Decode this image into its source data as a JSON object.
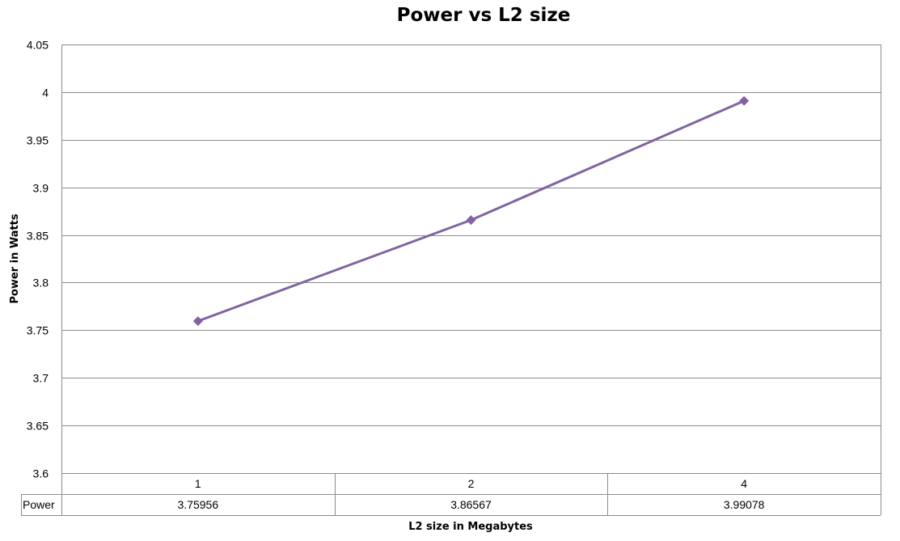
{
  "chart_data": {
    "type": "line",
    "title": "Power vs L2 size",
    "xlabel": "L2 size in Megabytes",
    "ylabel": "Power in Watts",
    "categories": [
      "1",
      "2",
      "4"
    ],
    "series": [
      {
        "name": "Power",
        "values": [
          3.75956,
          3.86567,
          3.99078
        ],
        "value_labels": [
          "3.75956",
          "3.86567",
          "3.99078"
        ],
        "color": "#8064a2",
        "marker": "diamond"
      }
    ],
    "ylim": [
      3.6,
      4.05
    ],
    "yticks": [
      3.6,
      3.65,
      3.7,
      3.75,
      3.8,
      3.85,
      3.9,
      3.95,
      4,
      4.05
    ],
    "grid": true,
    "legend": "data-table"
  }
}
